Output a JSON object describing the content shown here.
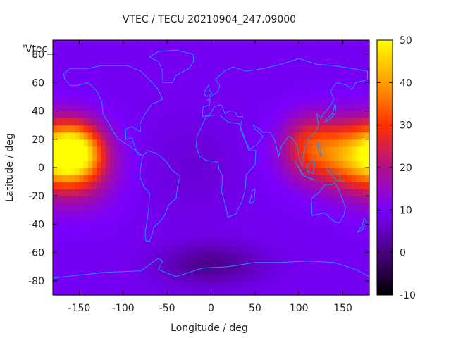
{
  "chart_data": {
    "type": "heatmap",
    "title": "VTEC / TECU 20210904_247.09000",
    "xlabel": "Longitude / deg",
    "ylabel": "Latitude / deg",
    "key_label": "'Vtec_'",
    "xlim": [
      -180,
      180
    ],
    "ylim": [
      -90,
      90
    ],
    "x_ticks": [
      -150,
      -100,
      -50,
      0,
      50,
      100,
      150
    ],
    "x_tick_labels": [
      "-150",
      "-100",
      "-50",
      "0",
      "50",
      "100",
      "150"
    ],
    "y_ticks": [
      -80,
      -60,
      -40,
      -20,
      0,
      20,
      40,
      60,
      80
    ],
    "y_tick_labels": [
      "-80",
      "-60",
      "-40",
      "-20",
      "0",
      "20",
      "40",
      "60",
      "80"
    ],
    "colorbar": {
      "range": [
        -10,
        50
      ],
      "ticks": [
        -10,
        0,
        10,
        20,
        30,
        40,
        50
      ],
      "tick_labels": [
        "-10",
        "0",
        "10",
        "20",
        "30",
        "40",
        "50"
      ],
      "palette": [
        "#000000",
        "#4a0080",
        "#7a00ff",
        "#b0108a",
        "#ff3000",
        "#ff9f00",
        "#ffff00"
      ]
    },
    "lon_step_deg": 5,
    "lat_step_deg": 5,
    "field_model": {
      "description_units": "TECU",
      "background": 9,
      "features": [
        {
          "lon": -155,
          "lat": 12,
          "amp": 35,
          "sx": 22,
          "sy": 14
        },
        {
          "lon": -150,
          "lat": -2,
          "amp": 12,
          "sx": 30,
          "sy": 18
        },
        {
          "lon": 140,
          "lat": 10,
          "amp": 20,
          "sx": 35,
          "sy": 16
        },
        {
          "lon": 170,
          "lat": 8,
          "amp": 14,
          "sx": 25,
          "sy": 18
        },
        {
          "lon": 110,
          "lat": 18,
          "amp": 10,
          "sx": 20,
          "sy": 14
        },
        {
          "lon": 0,
          "lat": -68,
          "amp": -8,
          "sx": 40,
          "sy": 10
        },
        {
          "lon": -20,
          "lat": 0,
          "amp": -2,
          "sx": 40,
          "sy": 25
        }
      ]
    },
    "coastline_color": "#1e8fff"
  }
}
